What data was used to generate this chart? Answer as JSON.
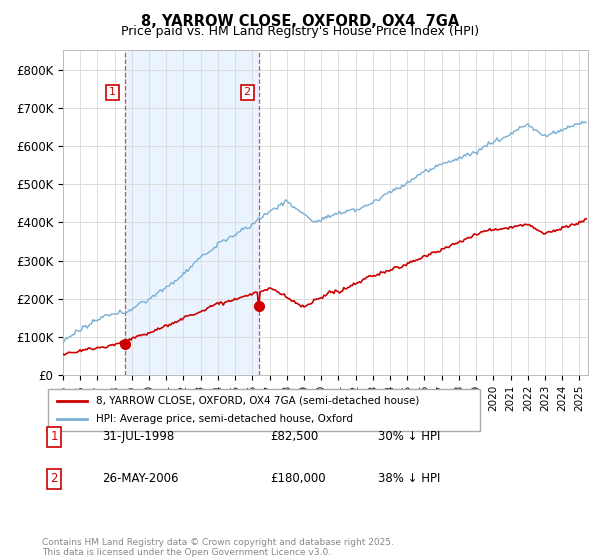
{
  "title": "8, YARROW CLOSE, OXFORD, OX4  7GA",
  "subtitle": "Price paid vs. HM Land Registry's House Price Index (HPI)",
  "xlim": [
    1995.0,
    2025.5
  ],
  "ylim": [
    0,
    850000
  ],
  "yticks": [
    0,
    100000,
    200000,
    300000,
    400000,
    500000,
    600000,
    700000,
    800000
  ],
  "ytick_labels": [
    "£0",
    "£100K",
    "£200K",
    "£300K",
    "£400K",
    "£500K",
    "£600K",
    "£700K",
    "£800K"
  ],
  "property_color": "#cc0000",
  "hpi_color": "#7aafd4",
  "shade_color": "#ddeeff",
  "vline1_x": 1998.58,
  "vline2_x": 2006.4,
  "marker1_x": 1998.58,
  "marker1_y": 82500,
  "marker2_x": 2006.4,
  "marker2_y": 180000,
  "legend_label_property": "8, YARROW CLOSE, OXFORD, OX4 7GA (semi-detached house)",
  "legend_label_hpi": "HPI: Average price, semi-detached house, Oxford",
  "table_rows": [
    {
      "num": "1",
      "date": "31-JUL-1998",
      "price": "£82,500",
      "change": "30% ↓ HPI"
    },
    {
      "num": "2",
      "date": "26-MAY-2006",
      "price": "£180,000",
      "change": "38% ↓ HPI"
    }
  ],
  "footnote": "Contains HM Land Registry data © Crown copyright and database right 2025.\nThis data is licensed under the Open Government Licence v3.0.",
  "background_color": "#ffffff",
  "grid_color": "#dddddd",
  "title_fontsize": 10,
  "subtitle_fontsize": 9
}
